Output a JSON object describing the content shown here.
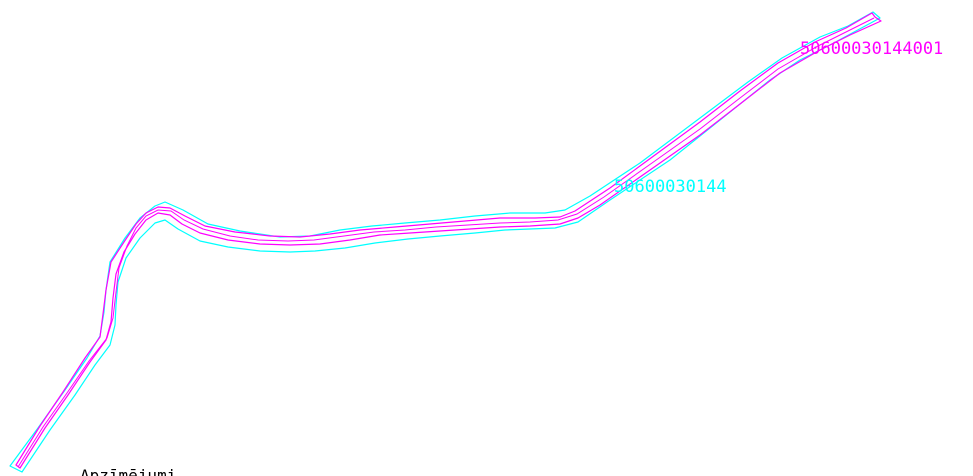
{
  "map": {
    "parcel_label": "50600030144",
    "sub_parcel_label": "50600030144001",
    "legend_title": "Apzīmējumi"
  },
  "colors": {
    "background": "#ffffff",
    "parcel_boundary": "#00ffff",
    "road_parcel": "#ff00ff",
    "legend_text": "#000000"
  }
}
